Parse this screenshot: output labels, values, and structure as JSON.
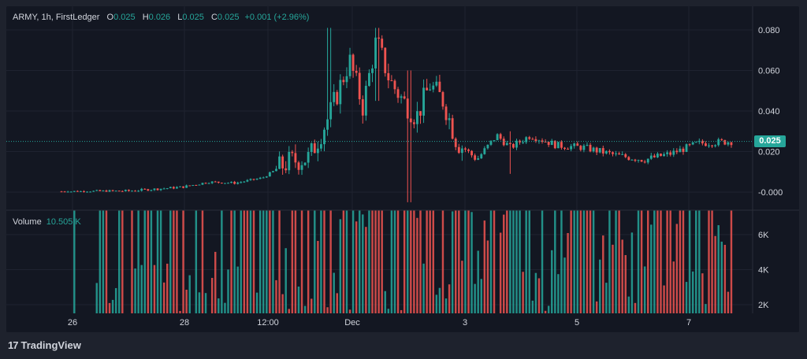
{
  "header": {
    "symbol": "ARMY, 1h, FirstLedger",
    "open_label": "O",
    "open": "0.025",
    "high_label": "H",
    "high": "0.026",
    "low_label": "L",
    "low": "0.025",
    "close_label": "C",
    "close": "0.025",
    "change": "+0.001 (+2.96%)"
  },
  "volume_legend": {
    "label": "Volume",
    "value": "10.505 K"
  },
  "brand": {
    "logo_text": "17",
    "name": "TradingView"
  },
  "last_price_label": "0.025",
  "colors": {
    "up": "#26a69a",
    "down": "#ef5350",
    "background": "#131722",
    "grid": "#1f2330",
    "text": "#d1d4dc"
  },
  "chart_data": {
    "type": "candlestick",
    "x_tick_labels": [
      "26",
      "28",
      "12:00",
      "Dec",
      "3",
      "5",
      "7"
    ],
    "y_tick_labels": [
      "0.080",
      "0.060",
      "0.040",
      "0.020",
      "-0.000"
    ],
    "ylim": [
      -0.008,
      0.085
    ],
    "volume_tick_labels": [
      "6K",
      "4K",
      "2K"
    ],
    "volume_ylim": [
      1000,
      7600
    ],
    "last_price": 0.025,
    "price_path": [
      {
        "t": 0,
        "p": 0.0003
      },
      {
        "t": 0.05,
        "p": 0.0004
      },
      {
        "t": 0.1,
        "p": 0.0006
      },
      {
        "t": 0.14,
        "p": 0.0015
      },
      {
        "t": 0.18,
        "p": 0.0025
      },
      {
        "t": 0.22,
        "p": 0.005
      },
      {
        "t": 0.26,
        "p": 0.0045
      },
      {
        "t": 0.3,
        "p": 0.007
      },
      {
        "t": 0.34,
        "p": 0.015
      },
      {
        "t": 0.37,
        "p": 0.017
      },
      {
        "t": 0.4,
        "p": 0.038
      },
      {
        "t": 0.43,
        "p": 0.065
      },
      {
        "t": 0.45,
        "p": 0.042
      },
      {
        "t": 0.47,
        "p": 0.075
      },
      {
        "t": 0.49,
        "p": 0.055
      },
      {
        "t": 0.51,
        "p": 0.045
      },
      {
        "t": 0.53,
        "p": 0.037
      },
      {
        "t": 0.55,
        "p": 0.053
      },
      {
        "t": 0.57,
        "p": 0.045
      },
      {
        "t": 0.59,
        "p": 0.025
      },
      {
        "t": 0.62,
        "p": 0.016
      },
      {
        "t": 0.65,
        "p": 0.028
      },
      {
        "t": 0.67,
        "p": 0.022
      },
      {
        "t": 0.7,
        "p": 0.028
      },
      {
        "t": 0.74,
        "p": 0.023
      },
      {
        "t": 0.78,
        "p": 0.022
      },
      {
        "t": 0.83,
        "p": 0.018
      },
      {
        "t": 0.87,
        "p": 0.016
      },
      {
        "t": 0.91,
        "p": 0.019
      },
      {
        "t": 0.95,
        "p": 0.024
      },
      {
        "t": 1,
        "p": 0.025
      }
    ],
    "spikes": [
      {
        "t": 0.4,
        "high": 0.081,
        "low": 0.032
      },
      {
        "t": 0.47,
        "high": 0.081,
        "low": 0.045
      },
      {
        "t": 0.52,
        "high": 0.06,
        "low": -0.005
      },
      {
        "t": 0.67,
        "high": 0.03,
        "low": 0.009
      }
    ],
    "volume_shape": [
      {
        "t": 0,
        "v": 0
      },
      {
        "t": 0.05,
        "v": 3200
      },
      {
        "t": 0.12,
        "v": 6000
      },
      {
        "t": 0.2,
        "v": 5000
      },
      {
        "t": 0.3,
        "v": 7600
      },
      {
        "t": 0.6,
        "v": 7600
      },
      {
        "t": 0.8,
        "v": 6500
      },
      {
        "t": 1,
        "v": 7000
      }
    ]
  }
}
